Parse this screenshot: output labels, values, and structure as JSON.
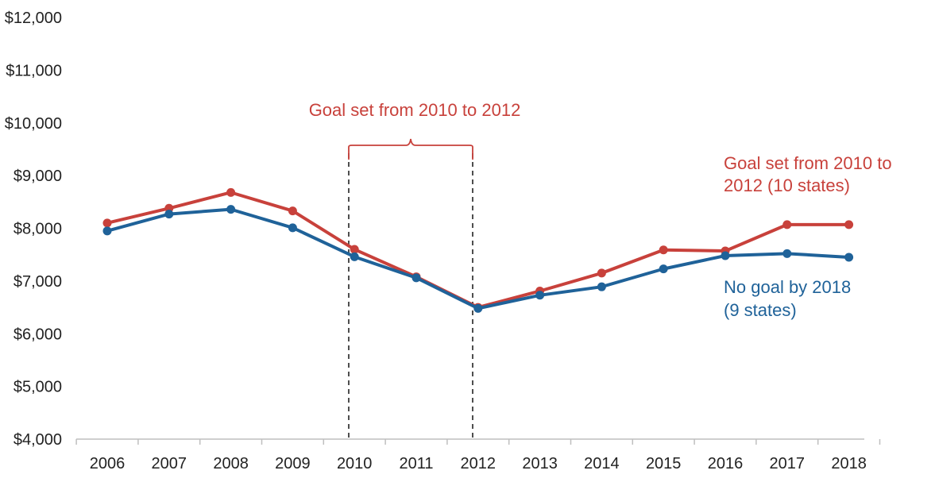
{
  "chart_data": {
    "type": "line",
    "title": "",
    "xlabel": "",
    "ylabel": "",
    "x": [
      "2006",
      "2007",
      "2008",
      "2009",
      "2010",
      "2011",
      "2012",
      "2013",
      "2014",
      "2015",
      "2016",
      "2017",
      "2018"
    ],
    "ylim": [
      4000,
      12000
    ],
    "yticks": [
      4000,
      5000,
      6000,
      7000,
      8000,
      9000,
      10000,
      11000,
      12000
    ],
    "ytick_labels": [
      "$4,000",
      "$5,000",
      "$6,000",
      "$7,000",
      "$8,000",
      "$9,000",
      "$10,000",
      "$11,000",
      "$12,000"
    ],
    "grid": false,
    "series": [
      {
        "name_lines": [
          "Goal set from 2010 to",
          "2012 (10 states)"
        ],
        "color": "#c8413b",
        "values": [
          8100,
          8380,
          8680,
          8330,
          7600,
          7080,
          6500,
          6810,
          7150,
          7590,
          7570,
          8070,
          8070
        ]
      },
      {
        "name_lines": [
          "No goal by 2018",
          "(9 states)"
        ],
        "color": "#1f6299",
        "values": [
          7950,
          8270,
          8360,
          8010,
          7460,
          7060,
          6480,
          6730,
          6890,
          7230,
          7480,
          7520,
          7450
        ]
      }
    ],
    "annotation": {
      "text": "Goal set from 2010 to 2012",
      "from": "2010",
      "to": "2012",
      "color": "#c8413b"
    }
  }
}
